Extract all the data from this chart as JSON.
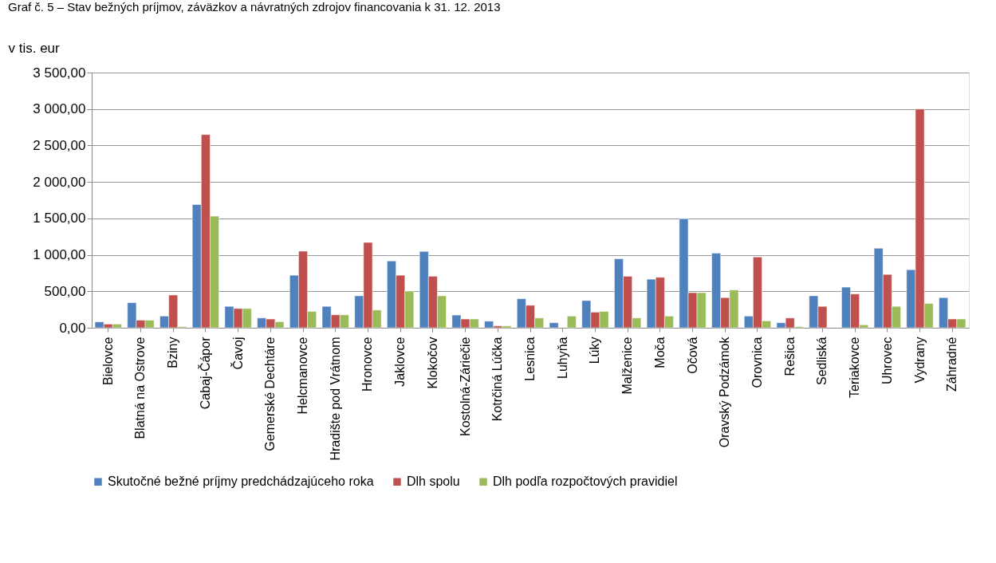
{
  "chart_data": {
    "type": "bar",
    "title": "Graf č. 5 – Stav bežných príjmov, záväzkov a návratných zdrojov financovania k 31. 12. 2013",
    "ylabel": "v tis. eur",
    "categories": [
      "Bielovce",
      "Blatná na Ostrove",
      "Bziny",
      "Cabaj-Čápor",
      "Čavoj",
      "Gemerské Dechtáre",
      "Helcmanovce",
      "Hradište pod Vrátnom",
      "Hronovce",
      "Jaklovce",
      "Klokočov",
      "Kostolná-Záriečie",
      "Kotrčiná Lúčka",
      "Lesnica",
      "Luhyňa",
      "Lúky",
      "Malženice",
      "Moča",
      "Očová",
      "Oravský Podzámok",
      "Orovnica",
      "Rešica",
      "Sedliská",
      "Teriakovce",
      "Uhrovec",
      "Vydrany",
      "Záhradné"
    ],
    "series": [
      {
        "name": "Skutočné bežné príjmy predchádzajúceho roka",
        "color": "#4f81bd",
        "values": [
          80,
          344,
          160,
          1690,
          293,
          134,
          720,
          293,
          438,
          916,
          1046,
          174,
          90,
          398,
          69,
          373,
          945,
          666,
          1495,
          1024,
          160,
          69,
          438,
          557,
          1090,
          796,
          413
        ]
      },
      {
        "name": "Dlh spolu",
        "color": "#c0504d",
        "values": [
          50,
          105,
          449,
          2650,
          264,
          120,
          1050,
          177,
          1170,
          720,
          706,
          120,
          25,
          308,
          null,
          214,
          706,
          691,
          481,
          413,
          970,
          134,
          293,
          463,
          731,
          3000,
          120
        ]
      },
      {
        "name": "Dlh podľa rozpočtových pravidiel",
        "color": "#9bbb59",
        "values": [
          50,
          105,
          15,
          1530,
          264,
          83,
          224,
          177,
          243,
          503,
          438,
          120,
          25,
          134,
          160,
          224,
          134,
          160,
          481,
          518,
          94,
          15,
          null,
          40,
          293,
          333,
          120
        ]
      }
    ],
    "ylim": [
      0,
      3500
    ],
    "yticks": [
      {
        "value": 0,
        "label": "0,00"
      },
      {
        "value": 500,
        "label": "500,00"
      },
      {
        "value": 1000,
        "label": "1 000,00"
      },
      {
        "value": 1500,
        "label": "1 500,00"
      },
      {
        "value": 2000,
        "label": "2 000,00"
      },
      {
        "value": 2500,
        "label": "2 500,00"
      },
      {
        "value": 3000,
        "label": "3 000,00"
      },
      {
        "value": 3500,
        "label": "3 500,00"
      }
    ],
    "grid": "y",
    "legend": "bottom"
  }
}
